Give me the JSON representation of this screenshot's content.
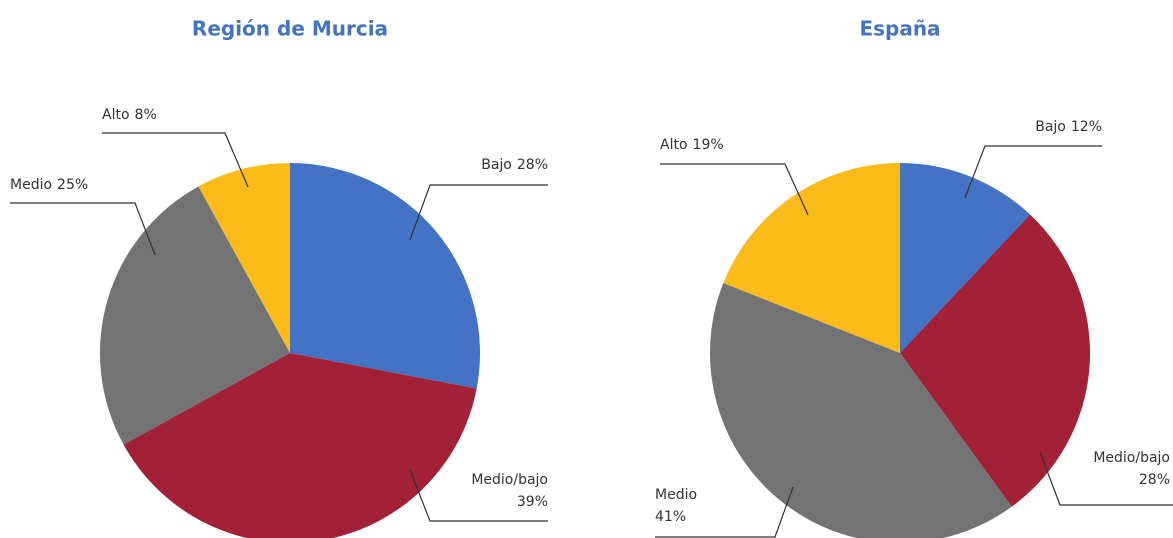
{
  "chart_data": [
    {
      "type": "pie",
      "title": "Región de Murcia",
      "categories": [
        "Bajo",
        "Medio/bajo",
        "Medio",
        "Alto"
      ],
      "values": [
        28,
        39,
        25,
        8
      ],
      "value_labels": [
        "28%",
        "39%",
        "25%",
        "8%"
      ],
      "colors": [
        "#4472c4",
        "#a32136",
        "#737373",
        "#fbbc1b"
      ]
    },
    {
      "type": "pie",
      "title": "España",
      "categories": [
        "Bajo",
        "Medio/bajo",
        "Medio",
        "Alto"
      ],
      "values": [
        12,
        28,
        41,
        19
      ],
      "value_labels": [
        "12%",
        "28%",
        "41%",
        "19%"
      ],
      "colors": [
        "#4472c4",
        "#a32136",
        "#737373",
        "#fbbc1b"
      ]
    }
  ]
}
